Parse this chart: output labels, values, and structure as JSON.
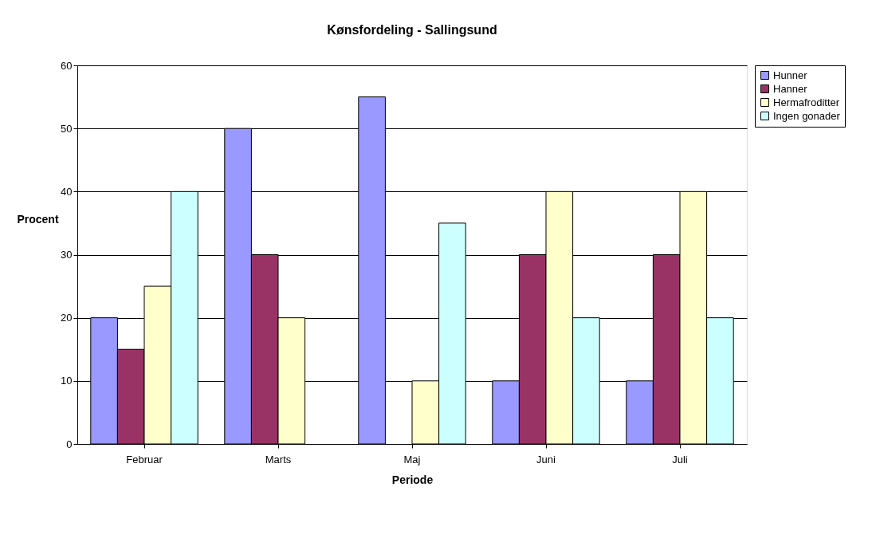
{
  "chart_data": {
    "type": "bar",
    "title": "Kønsfordeling - Sallingsund",
    "xlabel": "Periode",
    "ylabel": "Procent",
    "categories": [
      "Februar",
      "Marts",
      "Maj",
      "Juni",
      "Juli"
    ],
    "series": [
      {
        "name": "Hunner",
        "color": "#9999ff",
        "values": [
          20,
          50,
          55,
          10,
          10
        ]
      },
      {
        "name": "Hanner",
        "color": "#993366",
        "values": [
          15,
          30,
          null,
          30,
          30
        ]
      },
      {
        "name": "Hermafroditter",
        "color": "#ffffcc",
        "values": [
          25,
          20,
          10,
          40,
          40
        ]
      },
      {
        "name": "Ingen gonader",
        "color": "#ccffff",
        "values": [
          40,
          null,
          35,
          20,
          20
        ]
      }
    ],
    "ylim": [
      0,
      60
    ],
    "yticks": [
      0,
      10,
      20,
      30,
      40,
      50,
      60
    ],
    "grid": "y",
    "legend": "right"
  }
}
